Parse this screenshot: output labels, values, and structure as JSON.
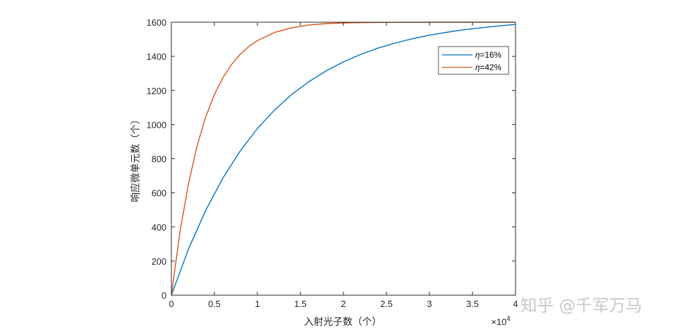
{
  "chart_data": {
    "type": "line",
    "xlabel": "入射光子数（个）",
    "ylabel": "响应微单元数（个）",
    "x_multiplier": "×10",
    "x_multiplier_exp": "4",
    "xlim": [
      0,
      40000
    ],
    "ylim": [
      0,
      1600
    ],
    "xticks": [
      0,
      5000,
      10000,
      15000,
      20000,
      25000,
      30000,
      35000,
      40000
    ],
    "xtick_labels": [
      "0",
      "0.5",
      "1",
      "1.5",
      "2",
      "2.5",
      "3",
      "3.5",
      "4"
    ],
    "yticks": [
      0,
      200,
      400,
      600,
      800,
      1000,
      1200,
      1400,
      1600
    ],
    "ytick_labels": [
      "0",
      "200",
      "400",
      "600",
      "800",
      "1000",
      "1200",
      "1400",
      "1600"
    ],
    "legend_position": "top-right",
    "grid": false,
    "series": [
      {
        "name": "η=16%",
        "legend_symbol": "η",
        "legend_value": "=16%",
        "color": "#0072BD",
        "x": [
          0,
          2000,
          4000,
          6000,
          8000,
          10000,
          12000,
          14000,
          16000,
          18000,
          20000,
          22000,
          24000,
          26000,
          28000,
          30000,
          32000,
          34000,
          36000,
          38000,
          40000
        ],
        "y": [
          0,
          272,
          498,
          688,
          845,
          977,
          1086,
          1177,
          1252,
          1315,
          1368,
          1411,
          1448,
          1478,
          1503,
          1524,
          1541,
          1556,
          1568,
          1578,
          1587
        ]
      },
      {
        "name": "η=42%",
        "legend_symbol": "η",
        "legend_value": "=42%",
        "color": "#D95319",
        "x": [
          0,
          1000,
          2000,
          3000,
          4000,
          5000,
          6000,
          7000,
          8000,
          9000,
          10000,
          12000,
          14000,
          16000,
          18000,
          20000,
          25000,
          30000,
          35000,
          40000
        ],
        "y": [
          0,
          371,
          657,
          877,
          1046,
          1176,
          1276,
          1353,
          1412,
          1457,
          1492,
          1540,
          1568,
          1584,
          1592,
          1596,
          1599,
          1600,
          1600,
          1600
        ]
      }
    ]
  },
  "watermark": "知乎 @千军万马"
}
